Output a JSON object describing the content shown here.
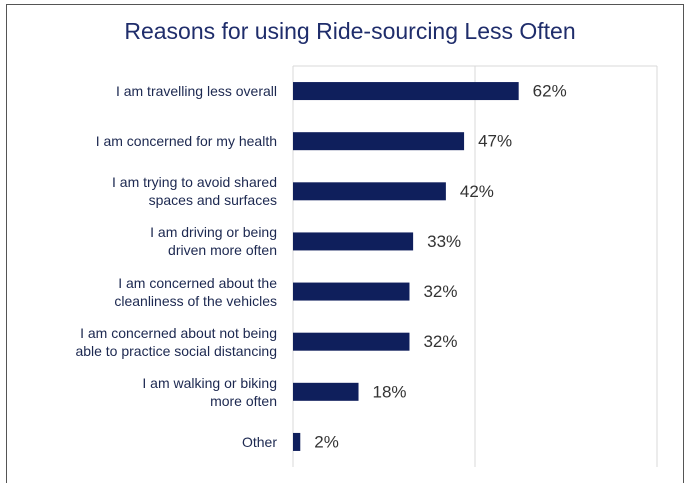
{
  "chart_data": {
    "type": "bar",
    "orientation": "horizontal",
    "title": "Reasons for using Ride-sourcing Less Often",
    "categories": [
      "I am travelling less overall",
      "I am concerned for my health",
      "I am trying to avoid shared\nspaces and surfaces",
      "I am driving or being\ndriven more often",
      "I am concerned about the\ncleanliness of the vehicles",
      "I am concerned about not being\nable to practice social distancing",
      "I am walking or biking\nmore often",
      "Other"
    ],
    "values": [
      62,
      47,
      42,
      33,
      32,
      32,
      18,
      2
    ],
    "value_labels": [
      "62%",
      "47%",
      "42%",
      "33%",
      "32%",
      "32%",
      "18%",
      "2%"
    ],
    "color": "#0f1f5c",
    "xlim": [
      0,
      100
    ],
    "xticks": [
      0,
      50,
      100
    ],
    "grid": true
  }
}
